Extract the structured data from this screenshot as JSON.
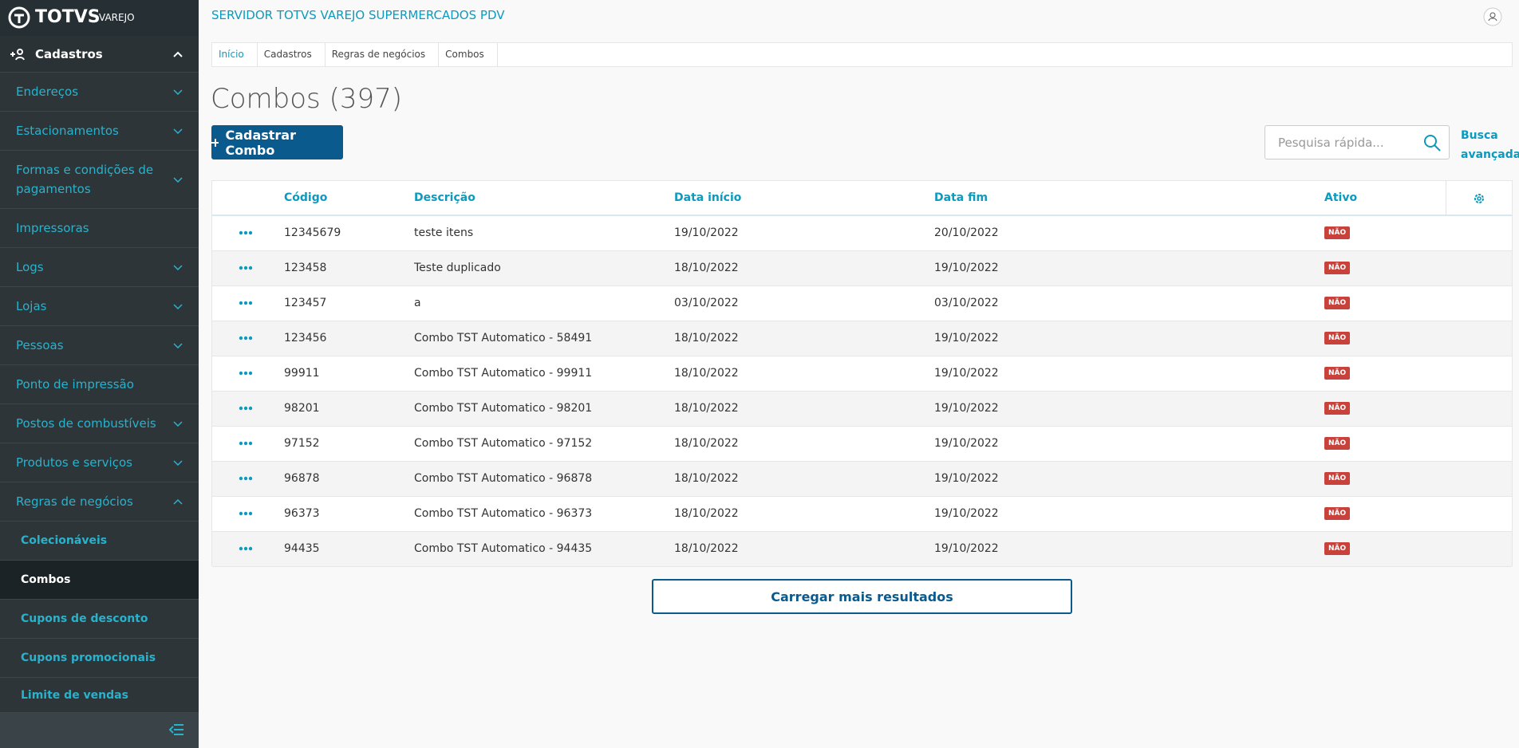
{
  "brand": {
    "logo": "TOTVS",
    "sub": "VAREJO"
  },
  "menu": {
    "section": "Cadastros",
    "items": [
      {
        "label": "Endereços",
        "arrow": "down"
      },
      {
        "label": "Estacionamentos",
        "arrow": "down"
      },
      {
        "label": "Formas e condições de pagamentos",
        "arrow": "down"
      },
      {
        "label": "Impressoras",
        "arrow": "none"
      },
      {
        "label": "Logs",
        "arrow": "down"
      },
      {
        "label": "Lojas",
        "arrow": "down"
      },
      {
        "label": "Pessoas",
        "arrow": "down"
      },
      {
        "label": "Ponto de impressão",
        "arrow": "none"
      },
      {
        "label": "Postos de combustíveis",
        "arrow": "down"
      },
      {
        "label": "Produtos e serviços",
        "arrow": "down"
      },
      {
        "label": "Regras de negócios",
        "arrow": "up"
      }
    ],
    "subitems": [
      {
        "label": "Colecionáveis",
        "active": false
      },
      {
        "label": "Combos",
        "active": true
      },
      {
        "label": "Cupons de desconto",
        "active": false
      },
      {
        "label": "Cupons promocionais",
        "active": false
      },
      {
        "label": "Limite de vendas",
        "active": false
      }
    ]
  },
  "header": {
    "title": "SERVIDOR TOTVS VAREJO SUPERMERCADOS PDV"
  },
  "breadcrumb": [
    "Início",
    "Cadastros",
    "Regras de negócios",
    "Combos"
  ],
  "page": {
    "title": "Combos (397)",
    "button": "Cadastrar Combo",
    "search_placeholder": "Pesquisa rápida...",
    "advanced_search": "Busca avançada"
  },
  "table": {
    "columns": [
      "Código",
      "Descrição",
      "Data início",
      "Data fim",
      "Ativo"
    ],
    "rows": [
      [
        "12345679",
        "teste itens",
        "19/10/2022",
        "20/10/2022",
        "NÃO"
      ],
      [
        "123458",
        "Teste duplicado",
        "18/10/2022",
        "19/10/2022",
        "NÃO"
      ],
      [
        "123457",
        "a",
        "03/10/2022",
        "03/10/2022",
        "NÃO"
      ],
      [
        "123456",
        "Combo TST Automatico - 58491",
        "18/10/2022",
        "19/10/2022",
        "NÃO"
      ],
      [
        "99911",
        "Combo TST Automatico - 99911",
        "18/10/2022",
        "19/10/2022",
        "NÃO"
      ],
      [
        "98201",
        "Combo TST Automatico - 98201",
        "18/10/2022",
        "19/10/2022",
        "NÃO"
      ],
      [
        "97152",
        "Combo TST Automatico - 97152",
        "18/10/2022",
        "19/10/2022",
        "NÃO"
      ],
      [
        "96878",
        "Combo TST Automatico - 96878",
        "18/10/2022",
        "19/10/2022",
        "NÃO"
      ],
      [
        "96373",
        "Combo TST Automatico - 96373",
        "18/10/2022",
        "19/10/2022",
        "NÃO"
      ],
      [
        "94435",
        "Combo TST Automatico - 94435",
        "18/10/2022",
        "19/10/2022",
        "NÃO"
      ]
    ]
  },
  "load_more": "Carregar mais resultados"
}
